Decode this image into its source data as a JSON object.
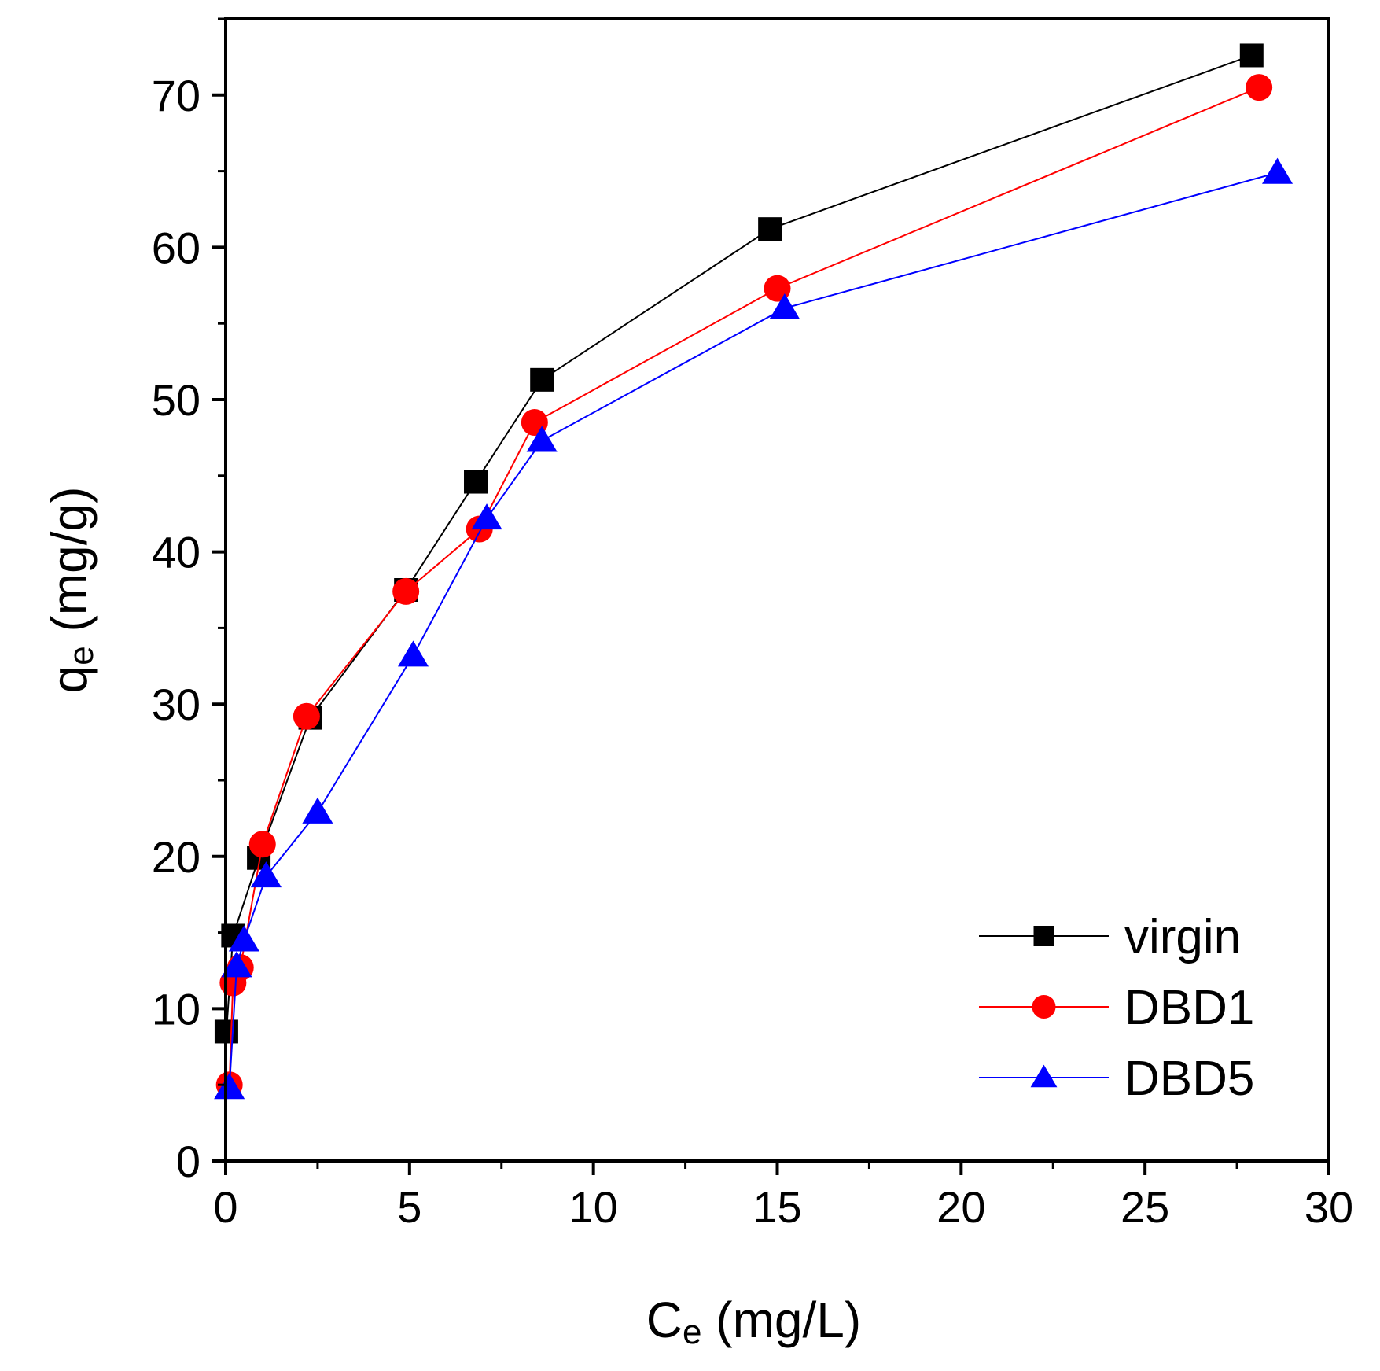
{
  "chart_data": {
    "type": "line",
    "title": "",
    "xlabel": {
      "main": "C",
      "sub": "e",
      "rest": " (mg/L)"
    },
    "ylabel": {
      "main": "q",
      "sub": "e",
      "rest": " (mg/g)"
    },
    "xlim": [
      0,
      30
    ],
    "ylim": [
      0,
      75
    ],
    "xticks": [
      0,
      5,
      10,
      15,
      20,
      25,
      30
    ],
    "yticks": [
      0,
      10,
      20,
      30,
      40,
      50,
      60,
      70
    ],
    "legend_position": "bottom-right",
    "series": [
      {
        "name": "virgin",
        "marker": "square",
        "color": "#000000",
        "x": [
          0.02,
          0.2,
          0.9,
          2.3,
          4.9,
          6.8,
          8.6,
          14.8,
          27.9
        ],
        "y": [
          8.5,
          14.8,
          19.9,
          29.1,
          37.5,
          44.6,
          51.3,
          61.2,
          72.6
        ]
      },
      {
        "name": "DBD1",
        "marker": "circle",
        "color": "#ff0000",
        "x": [
          0.1,
          0.2,
          0.4,
          1.0,
          2.2,
          4.9,
          6.9,
          8.4,
          15.0,
          28.1
        ],
        "y": [
          5.0,
          11.7,
          12.7,
          20.8,
          29.2,
          37.4,
          41.5,
          48.5,
          57.3,
          70.5
        ]
      },
      {
        "name": "DBD5",
        "marker": "triangle",
        "color": "#0000ff",
        "x": [
          0.1,
          0.3,
          0.5,
          1.1,
          2.5,
          5.1,
          7.1,
          8.6,
          15.2,
          28.6
        ],
        "y": [
          4.8,
          12.8,
          14.5,
          18.7,
          22.9,
          33.2,
          42.2,
          47.3,
          56.0,
          64.9
        ]
      }
    ]
  }
}
